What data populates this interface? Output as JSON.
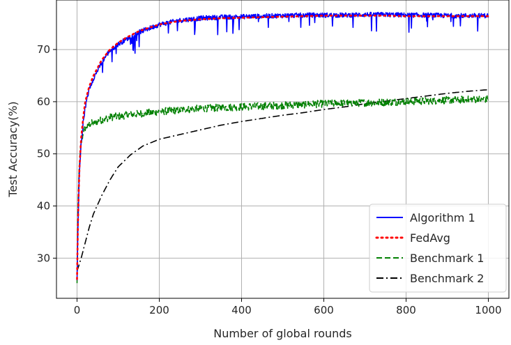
{
  "chart_data": {
    "type": "line",
    "title": "",
    "xlabel": "Number of global rounds",
    "ylabel": "Test Accuracy(%)",
    "xlim": [
      -50,
      1050
    ],
    "ylim": [
      22.3,
      79.5
    ],
    "xticks": [
      0,
      200,
      400,
      600,
      800,
      1000
    ],
    "yticks": [
      30,
      40,
      50,
      60,
      70
    ],
    "grid": true,
    "legend_position": "bottom-right",
    "series": [
      {
        "name": "Algorithm 1",
        "color": "#0000ff",
        "linestyle": "solid",
        "noisy": true,
        "x": [
          0,
          2,
          5,
          10,
          15,
          20,
          30,
          40,
          50,
          60,
          70,
          80,
          100,
          120,
          150,
          180,
          200,
          250,
          300,
          350,
          400,
          450,
          500,
          550,
          600,
          650,
          700,
          750,
          800,
          850,
          900,
          950,
          1000
        ],
        "y": [
          25.5,
          35,
          45,
          52,
          56,
          59,
          62.5,
          64.5,
          66,
          67.5,
          68.8,
          69.8,
          71,
          72,
          73.3,
          74.2,
          74.8,
          75.6,
          76.0,
          76.2,
          76.3,
          76.4,
          76.5,
          76.6,
          76.6,
          76.6,
          76.7,
          76.7,
          76.6,
          76.6,
          76.5,
          76.5,
          76.5
        ]
      },
      {
        "name": "FedAvg",
        "color": "#ff0000",
        "linestyle": "dotted",
        "noisy": false,
        "x": [
          0,
          2,
          5,
          10,
          15,
          20,
          30,
          40,
          50,
          60,
          70,
          80,
          100,
          120,
          150,
          180,
          200,
          250,
          300,
          350,
          400,
          450,
          500,
          550,
          600,
          650,
          700,
          750,
          800,
          850,
          900,
          950,
          1000
        ],
        "y": [
          26,
          36,
          46,
          53,
          57,
          60,
          63,
          65,
          66.5,
          68,
          69,
          70,
          71.3,
          72.3,
          73.5,
          74.3,
          74.8,
          75.5,
          75.8,
          76.0,
          76.1,
          76.2,
          76.3,
          76.4,
          76.5,
          76.5,
          76.5,
          76.5,
          76.4,
          76.4,
          76.4,
          76.4,
          76.4
        ]
      },
      {
        "name": "Benchmark 1",
        "color": "#008000",
        "linestyle": "dashed",
        "noisy": true,
        "x": [
          0,
          2,
          5,
          10,
          15,
          20,
          30,
          40,
          60,
          80,
          100,
          150,
          200,
          300,
          400,
          500,
          600,
          700,
          800,
          900,
          1000
        ],
        "y": [
          25,
          38,
          47,
          52,
          54,
          55,
          55.7,
          56,
          56.5,
          57,
          57.2,
          57.7,
          58.1,
          58.7,
          59.0,
          59.3,
          59.6,
          59.8,
          60.0,
          60.3,
          60.5
        ]
      },
      {
        "name": "Benchmark 2",
        "color": "#000000",
        "linestyle": "dashdot",
        "noisy": false,
        "x": [
          0,
          10,
          20,
          30,
          40,
          60,
          80,
          100,
          130,
          160,
          200,
          250,
          300,
          350,
          400,
          450,
          500,
          550,
          600,
          650,
          700,
          750,
          800,
          850,
          900,
          950,
          1000
        ],
        "y": [
          27.5,
          30,
          33,
          36,
          38.5,
          42,
          45,
          47.5,
          49.8,
          51.5,
          52.8,
          53.7,
          54.6,
          55.5,
          56.2,
          56.8,
          57.4,
          57.9,
          58.5,
          59.0,
          59.6,
          60.1,
          60.6,
          61.1,
          61.6,
          62.0,
          62.3
        ]
      }
    ]
  }
}
